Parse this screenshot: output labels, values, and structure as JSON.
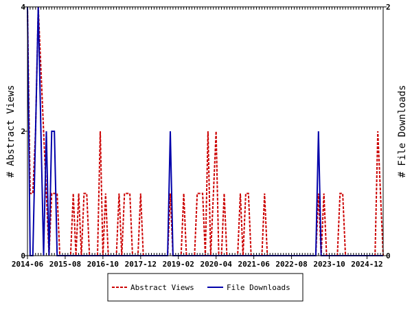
{
  "chart_data": {
    "type": "line",
    "x_tick_labels": [
      "2014-06",
      "2015-08",
      "2016-10",
      "2017-12",
      "2019-02",
      "2020-04",
      "2021-06",
      "2022-08",
      "2023-10",
      "2024-12"
    ],
    "x_range": [
      "2014-06",
      "2025-06"
    ],
    "y_left": {
      "label": "# Abstract Views",
      "ticks": [
        0,
        2,
        4
      ],
      "range": [
        0,
        4
      ]
    },
    "y_right": {
      "label": "# File Downloads",
      "ticks": [
        0,
        2
      ],
      "range": [
        0,
        2
      ]
    },
    "legend_position": "bottom-center",
    "series": [
      {
        "name": "Abstract Views",
        "axis": "left",
        "color": "#cc0000",
        "style": "dashed",
        "points": [
          [
            "2014-06",
            4
          ],
          [
            "2014-07",
            1
          ],
          [
            "2014-08",
            1
          ],
          [
            "2014-09",
            2
          ],
          [
            "2014-10",
            4
          ],
          [
            "2014-11",
            3
          ],
          [
            "2014-12",
            2
          ],
          [
            "2015-01",
            1
          ],
          [
            "2015-02",
            0
          ],
          [
            "2015-03",
            1
          ],
          [
            "2015-04",
            1
          ],
          [
            "2015-05",
            1
          ],
          [
            "2015-06",
            0
          ],
          [
            "2015-07",
            0
          ],
          [
            "2015-08",
            0
          ],
          [
            "2015-09",
            0
          ],
          [
            "2015-10",
            0
          ],
          [
            "2015-11",
            1
          ],
          [
            "2015-12",
            0
          ],
          [
            "2016-01",
            1
          ],
          [
            "2016-02",
            0
          ],
          [
            "2016-03",
            1
          ],
          [
            "2016-04",
            1
          ],
          [
            "2016-05",
            0
          ],
          [
            "2016-06",
            0
          ],
          [
            "2016-07",
            0
          ],
          [
            "2016-08",
            0
          ],
          [
            "2016-09",
            2
          ],
          [
            "2016-10",
            0
          ],
          [
            "2016-11",
            1
          ],
          [
            "2016-12",
            0
          ],
          [
            "2017-01",
            0
          ],
          [
            "2017-02",
            0
          ],
          [
            "2017-03",
            0
          ],
          [
            "2017-04",
            1
          ],
          [
            "2017-05",
            0
          ],
          [
            "2017-06",
            1
          ],
          [
            "2017-07",
            1
          ],
          [
            "2017-08",
            1
          ],
          [
            "2017-09",
            0
          ],
          [
            "2017-10",
            0
          ],
          [
            "2017-11",
            0
          ],
          [
            "2017-12",
            1
          ],
          [
            "2018-01",
            0
          ],
          [
            "2018-02",
            0
          ],
          [
            "2018-03",
            0
          ],
          [
            "2018-04",
            0
          ],
          [
            "2018-05",
            0
          ],
          [
            "2018-06",
            0
          ],
          [
            "2018-07",
            0
          ],
          [
            "2018-08",
            0
          ],
          [
            "2018-09",
            0
          ],
          [
            "2018-10",
            0
          ],
          [
            "2018-11",
            1
          ],
          [
            "2018-12",
            0
          ],
          [
            "2019-01",
            0
          ],
          [
            "2019-02",
            0
          ],
          [
            "2019-03",
            0
          ],
          [
            "2019-04",
            1
          ],
          [
            "2019-05",
            0
          ],
          [
            "2019-06",
            0
          ],
          [
            "2019-07",
            0
          ],
          [
            "2019-08",
            0
          ],
          [
            "2019-09",
            1
          ],
          [
            "2019-10",
            1
          ],
          [
            "2019-11",
            1
          ],
          [
            "2019-12",
            0
          ],
          [
            "2020-01",
            2
          ],
          [
            "2020-02",
            0
          ],
          [
            "2020-03",
            1
          ],
          [
            "2020-04",
            2
          ],
          [
            "2020-05",
            0
          ],
          [
            "2020-06",
            0
          ],
          [
            "2020-07",
            1
          ],
          [
            "2020-08",
            0
          ],
          [
            "2020-09",
            0
          ],
          [
            "2020-10",
            0
          ],
          [
            "2020-11",
            0
          ],
          [
            "2020-12",
            0
          ],
          [
            "2021-01",
            1
          ],
          [
            "2021-02",
            0
          ],
          [
            "2021-03",
            1
          ],
          [
            "2021-04",
            1
          ],
          [
            "2021-05",
            0
          ],
          [
            "2021-06",
            0
          ],
          [
            "2021-07",
            0
          ],
          [
            "2021-08",
            0
          ],
          [
            "2021-09",
            0
          ],
          [
            "2021-10",
            1
          ],
          [
            "2021-11",
            0
          ],
          [
            "2021-12",
            0
          ],
          [
            "2022-01",
            0
          ],
          [
            "2022-02",
            0
          ],
          [
            "2022-03",
            0
          ],
          [
            "2022-04",
            0
          ],
          [
            "2022-05",
            0
          ],
          [
            "2022-06",
            0
          ],
          [
            "2022-07",
            0
          ],
          [
            "2022-08",
            0
          ],
          [
            "2022-09",
            0
          ],
          [
            "2022-10",
            0
          ],
          [
            "2022-11",
            0
          ],
          [
            "2022-12",
            0
          ],
          [
            "2023-01",
            0
          ],
          [
            "2023-02",
            0
          ],
          [
            "2023-03",
            0
          ],
          [
            "2023-04",
            0
          ],
          [
            "2023-05",
            0
          ],
          [
            "2023-06",
            1
          ],
          [
            "2023-07",
            0
          ],
          [
            "2023-08",
            1
          ],
          [
            "2023-09",
            0
          ],
          [
            "2023-10",
            0
          ],
          [
            "2023-11",
            0
          ],
          [
            "2023-12",
            0
          ],
          [
            "2024-01",
            0
          ],
          [
            "2024-02",
            1
          ],
          [
            "2024-03",
            1
          ],
          [
            "2024-04",
            0
          ],
          [
            "2024-05",
            0
          ],
          [
            "2024-06",
            0
          ],
          [
            "2024-07",
            0
          ],
          [
            "2024-08",
            0
          ],
          [
            "2024-09",
            0
          ],
          [
            "2024-10",
            0
          ],
          [
            "2024-11",
            0
          ],
          [
            "2024-12",
            0
          ],
          [
            "2025-01",
            0
          ],
          [
            "2025-02",
            0
          ],
          [
            "2025-03",
            0
          ],
          [
            "2025-04",
            2
          ],
          [
            "2025-05",
            1
          ],
          [
            "2025-06",
            0
          ]
        ]
      },
      {
        "name": "File Downloads",
        "axis": "right",
        "color": "#0000aa",
        "style": "solid",
        "points": [
          [
            "2014-06",
            2
          ],
          [
            "2014-07",
            0
          ],
          [
            "2014-08",
            0
          ],
          [
            "2014-09",
            1
          ],
          [
            "2014-10",
            2
          ],
          [
            "2014-11",
            1
          ],
          [
            "2014-12",
            0
          ],
          [
            "2015-01",
            1
          ],
          [
            "2015-02",
            0
          ],
          [
            "2015-03",
            1
          ],
          [
            "2015-04",
            1
          ],
          [
            "2015-05",
            0
          ],
          [
            "2015-06",
            0
          ],
          [
            "2015-07",
            0
          ],
          [
            "2015-08",
            0
          ],
          [
            "2015-09",
            0
          ],
          [
            "2015-10",
            0
          ],
          [
            "2015-11",
            0
          ],
          [
            "2015-12",
            0
          ],
          [
            "2016-01",
            0
          ],
          [
            "2016-02",
            0
          ],
          [
            "2016-03",
            0
          ],
          [
            "2016-04",
            0
          ],
          [
            "2016-05",
            0
          ],
          [
            "2016-06",
            0
          ],
          [
            "2016-07",
            0
          ],
          [
            "2016-08",
            0
          ],
          [
            "2016-09",
            0
          ],
          [
            "2016-10",
            0
          ],
          [
            "2016-11",
            0
          ],
          [
            "2016-12",
            0
          ],
          [
            "2017-01",
            0
          ],
          [
            "2017-02",
            0
          ],
          [
            "2017-03",
            0
          ],
          [
            "2017-04",
            0
          ],
          [
            "2017-05",
            0
          ],
          [
            "2017-06",
            0
          ],
          [
            "2017-07",
            0
          ],
          [
            "2017-08",
            0
          ],
          [
            "2017-09",
            0
          ],
          [
            "2017-10",
            0
          ],
          [
            "2017-11",
            0
          ],
          [
            "2017-12",
            0
          ],
          [
            "2018-01",
            0
          ],
          [
            "2018-02",
            0
          ],
          [
            "2018-03",
            0
          ],
          [
            "2018-04",
            0
          ],
          [
            "2018-05",
            0
          ],
          [
            "2018-06",
            0
          ],
          [
            "2018-07",
            0
          ],
          [
            "2018-08",
            0
          ],
          [
            "2018-09",
            0
          ],
          [
            "2018-10",
            0
          ],
          [
            "2018-11",
            1
          ],
          [
            "2018-12",
            0
          ],
          [
            "2019-01",
            0
          ],
          [
            "2019-02",
            0
          ],
          [
            "2019-03",
            0
          ],
          [
            "2019-04",
            0
          ],
          [
            "2019-05",
            0
          ],
          [
            "2019-06",
            0
          ],
          [
            "2019-07",
            0
          ],
          [
            "2019-08",
            0
          ],
          [
            "2019-09",
            0
          ],
          [
            "2019-10",
            0
          ],
          [
            "2019-11",
            0
          ],
          [
            "2019-12",
            0
          ],
          [
            "2020-01",
            0
          ],
          [
            "2020-02",
            0
          ],
          [
            "2020-03",
            0
          ],
          [
            "2020-04",
            0
          ],
          [
            "2020-05",
            0
          ],
          [
            "2020-06",
            0
          ],
          [
            "2020-07",
            0
          ],
          [
            "2020-08",
            0
          ],
          [
            "2020-09",
            0
          ],
          [
            "2020-10",
            0
          ],
          [
            "2020-11",
            0
          ],
          [
            "2020-12",
            0
          ],
          [
            "2021-01",
            0
          ],
          [
            "2021-02",
            0
          ],
          [
            "2021-03",
            0
          ],
          [
            "2021-04",
            0
          ],
          [
            "2021-05",
            0
          ],
          [
            "2021-06",
            0
          ],
          [
            "2021-07",
            0
          ],
          [
            "2021-08",
            0
          ],
          [
            "2021-09",
            0
          ],
          [
            "2021-10",
            0
          ],
          [
            "2021-11",
            0
          ],
          [
            "2021-12",
            0
          ],
          [
            "2022-01",
            0
          ],
          [
            "2022-02",
            0
          ],
          [
            "2022-03",
            0
          ],
          [
            "2022-04",
            0
          ],
          [
            "2022-05",
            0
          ],
          [
            "2022-06",
            0
          ],
          [
            "2022-07",
            0
          ],
          [
            "2022-08",
            0
          ],
          [
            "2022-09",
            0
          ],
          [
            "2022-10",
            0
          ],
          [
            "2022-11",
            0
          ],
          [
            "2022-12",
            0
          ],
          [
            "2023-01",
            0
          ],
          [
            "2023-02",
            0
          ],
          [
            "2023-03",
            0
          ],
          [
            "2023-04",
            0
          ],
          [
            "2023-05",
            0
          ],
          [
            "2023-06",
            1
          ],
          [
            "2023-07",
            0
          ],
          [
            "2023-08",
            0
          ],
          [
            "2023-09",
            0
          ],
          [
            "2023-10",
            0
          ],
          [
            "2023-11",
            0
          ],
          [
            "2023-12",
            0
          ],
          [
            "2024-01",
            0
          ],
          [
            "2024-02",
            0
          ],
          [
            "2024-03",
            0
          ],
          [
            "2024-04",
            0
          ],
          [
            "2024-05",
            0
          ],
          [
            "2024-06",
            0
          ],
          [
            "2024-07",
            0
          ],
          [
            "2024-08",
            0
          ],
          [
            "2024-09",
            0
          ],
          [
            "2024-10",
            0
          ],
          [
            "2024-11",
            0
          ],
          [
            "2024-12",
            0
          ],
          [
            "2025-01",
            0
          ],
          [
            "2025-02",
            0
          ],
          [
            "2025-03",
            0
          ],
          [
            "2025-04",
            0
          ],
          [
            "2025-05",
            0
          ],
          [
            "2025-06",
            0
          ]
        ]
      }
    ]
  }
}
